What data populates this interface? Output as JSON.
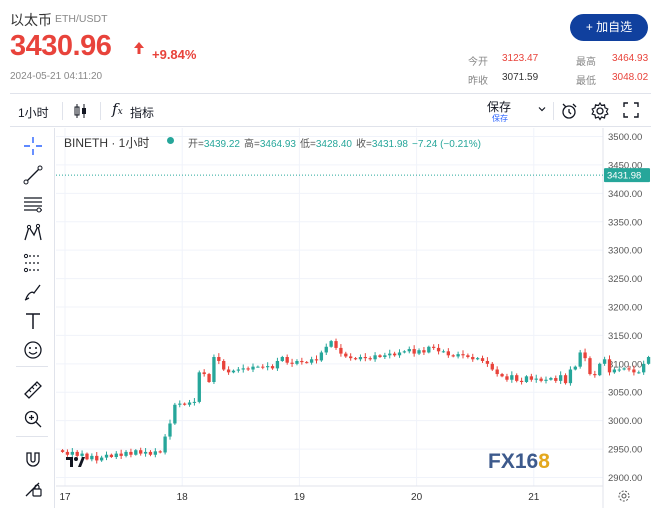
{
  "header": {
    "title": "以太币",
    "pair": "ETH/USDT",
    "price": "3430.96",
    "change": "+9.84%",
    "timestamp": "2024-05-21 04:11:20",
    "add_button": "+ 加自选",
    "stats": {
      "open_label": "今开",
      "open": "3123.47",
      "high_label": "最高",
      "high": "3464.93",
      "prev_label": "昨收",
      "prev": "3071.59",
      "low_label": "最低",
      "low": "3048.02"
    }
  },
  "toolbar": {
    "interval": "1小时",
    "indicators": "指标",
    "save": "保存",
    "save_sub": "保存"
  },
  "legend": {
    "symbol": "BINETH · 1小时",
    "open_label": "开=",
    "open": "3439.22",
    "high_label": "高=",
    "high": "3464.93",
    "low_label": "低=",
    "low": "3428.40",
    "close_label": "收=",
    "close": "3431.98",
    "change": "−7.24 (−0.21%)"
  },
  "price_tag": "3431.98",
  "watermark": {
    "main": "FX16",
    "accent": "8"
  },
  "colors": {
    "up": "#26a69a",
    "down": "#e8433b",
    "accent": "#10409e"
  },
  "icons": [
    "crosshair-icon",
    "trendline-icon",
    "fib-icon",
    "pattern-icon",
    "prediction-icon",
    "brush-icon",
    "text-icon",
    "emoji-icon",
    "ruler-icon",
    "zoom-icon",
    "magnet-icon",
    "lock-icon",
    "candlestick-icon",
    "alert-icon",
    "settings-icon",
    "fullscreen-icon",
    "chevron-down-icon",
    "tradingview-logo-icon"
  ],
  "chart_data": {
    "type": "candlestick",
    "x_ticks": [
      "17",
      "18",
      "19",
      "20",
      "21"
    ],
    "y_ticks": [
      2900,
      2950,
      3000,
      3050,
      3100,
      3150,
      3200,
      3250,
      3300,
      3350,
      3400,
      3450,
      3500
    ],
    "y_tick_labels": [
      "2900.00",
      "2950.00",
      "3000.00",
      "3050.00",
      "3100.00",
      "3150.00",
      "3200.00",
      "3250.00",
      "3300.00",
      "3350.00",
      "3400.00",
      "3450.00",
      "3500.00"
    ],
    "ylim": [
      2885,
      3515
    ],
    "last_price": 3431.98,
    "bars_per_day": 24,
    "candles_start_hour": -1,
    "closes": [
      2945,
      2940,
      2945,
      2938,
      2942,
      2932,
      2938,
      2930,
      2935,
      2940,
      2936,
      2942,
      2938,
      2945,
      2940,
      2948,
      2942,
      2945,
      2940,
      2946,
      2944,
      2972,
      2995,
      3028,
      3030,
      3028,
      3032,
      3033,
      3085,
      3082,
      3068,
      3112,
      3105,
      3090,
      3085,
      3088,
      3090,
      3092,
      3090,
      3095,
      3095,
      3094,
      3096,
      3092,
      3105,
      3112,
      3102,
      3100,
      3105,
      3103,
      3102,
      3108,
      3106,
      3120,
      3130,
      3140,
      3128,
      3118,
      3113,
      3110,
      3108,
      3112,
      3110,
      3108,
      3115,
      3112,
      3115,
      3118,
      3115,
      3120,
      3122,
      3126,
      3118,
      3124,
      3120,
      3130,
      3128,
      3122,
      3122,
      3115,
      3113,
      3117,
      3115,
      3112,
      3108,
      3110,
      3105,
      3100,
      3090,
      3082,
      3078,
      3072,
      3080,
      3070,
      3068,
      3078,
      3072,
      3074,
      3070,
      3072,
      3075,
      3070,
      3080,
      3066,
      3090,
      3095,
      3120,
      3110,
      3082,
      3080,
      3100,
      3108,
      3085,
      3090,
      3090,
      3092,
      3090,
      3085,
      3085,
      3100,
      3112,
      3125,
      3135,
      3145,
      3150,
      3420,
      3432
    ]
  }
}
